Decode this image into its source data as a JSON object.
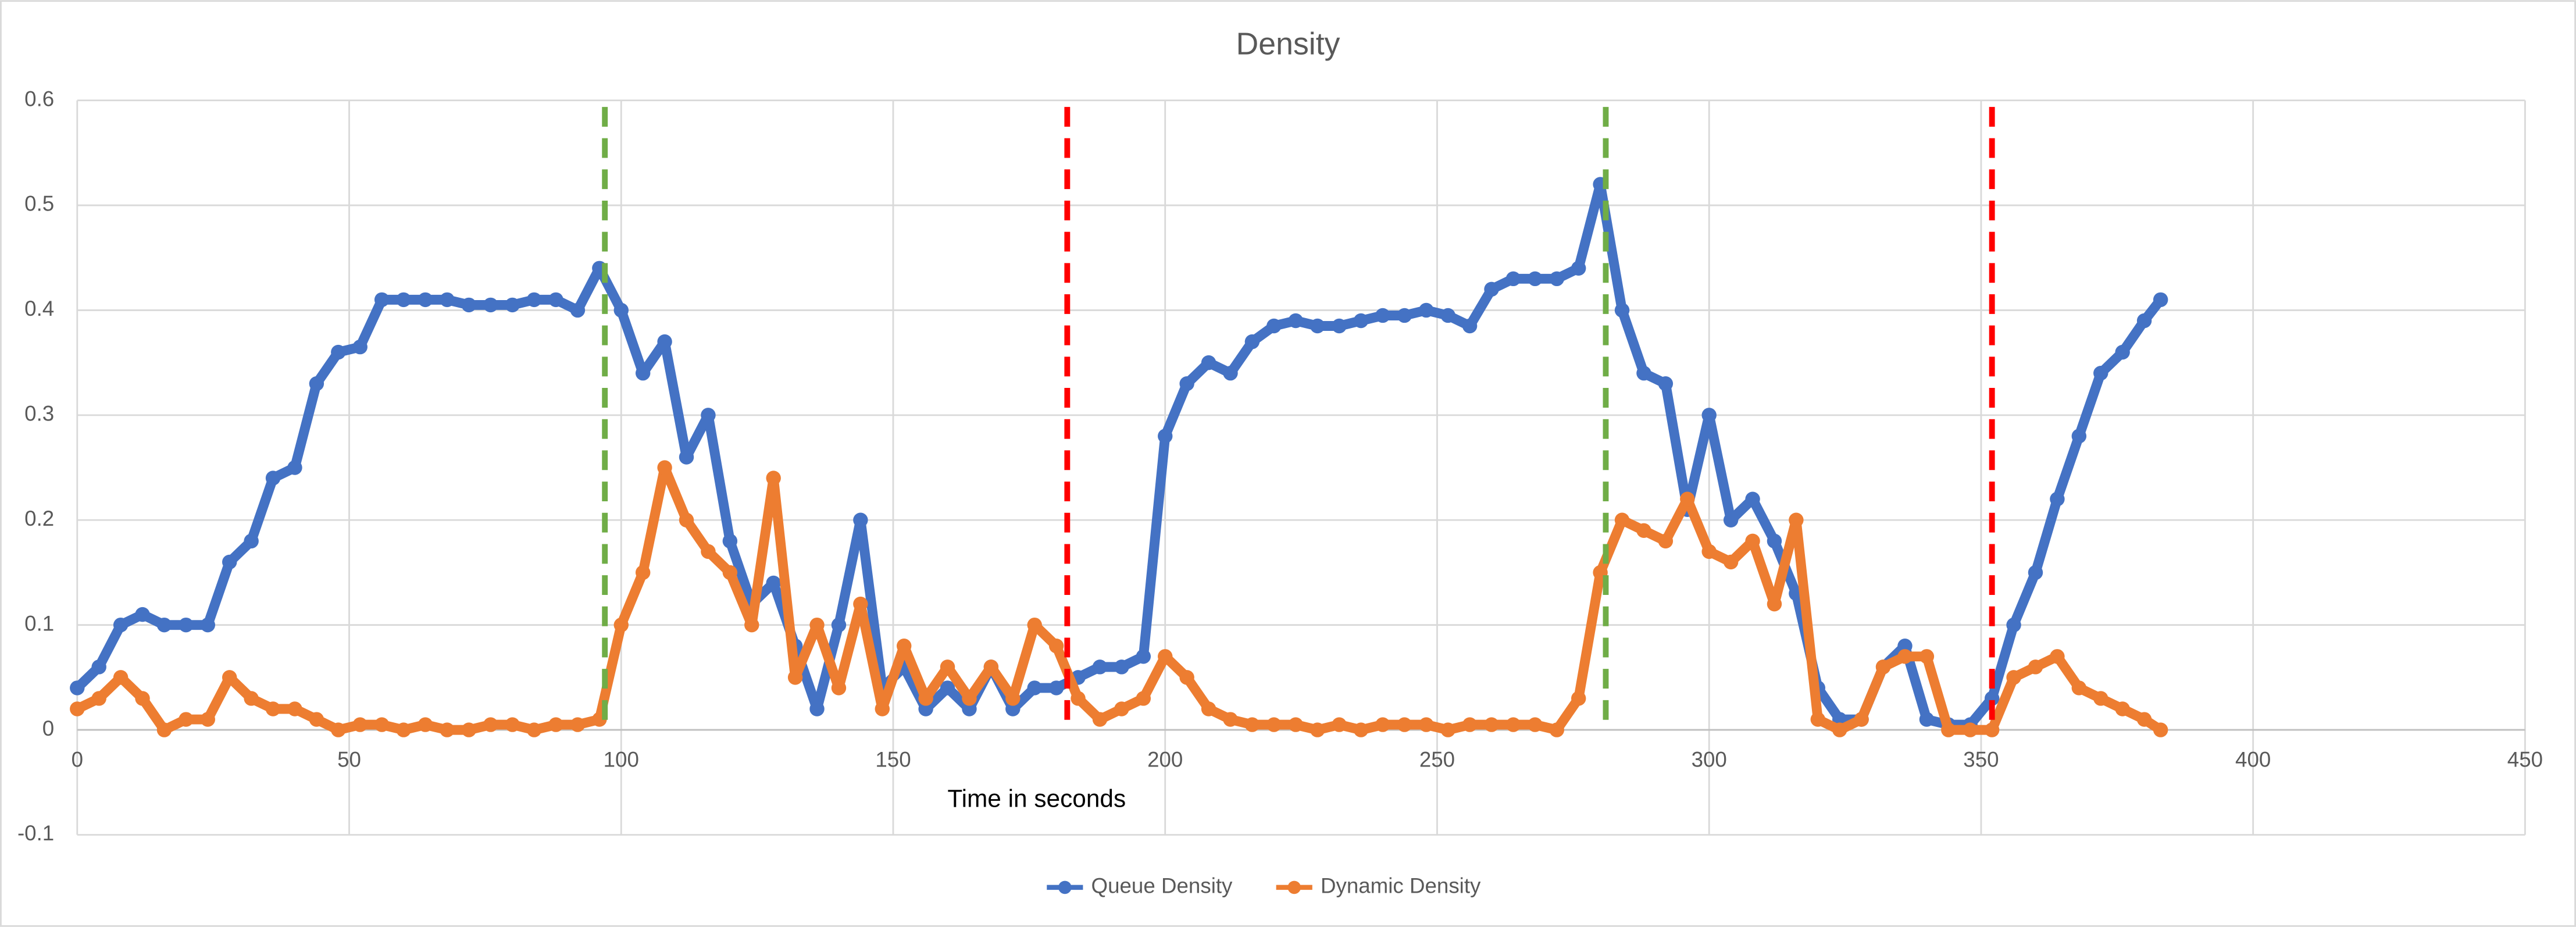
{
  "chart_data": {
    "type": "line",
    "title": "Density",
    "xlabel": "Time in seconds",
    "x": [
      0,
      4,
      8,
      12,
      16,
      20,
      24,
      28,
      32,
      36,
      40,
      44,
      48,
      52,
      56,
      60,
      64,
      68,
      72,
      76,
      80,
      84,
      88,
      92,
      96,
      100,
      104,
      108,
      112,
      116,
      120,
      124,
      128,
      132,
      136,
      140,
      144,
      148,
      152,
      156,
      160,
      164,
      168,
      172,
      176,
      180,
      184,
      188,
      192,
      196,
      200,
      204,
      208,
      212,
      216,
      220,
      224,
      228,
      232,
      236,
      240,
      244,
      248,
      252,
      256,
      260,
      264,
      268,
      272,
      276,
      280,
      284,
      288,
      292,
      296,
      300,
      304,
      308,
      312,
      316,
      320,
      324,
      328,
      332,
      336,
      340,
      344,
      348,
      352,
      356,
      360,
      364,
      368,
      372,
      376,
      380,
      383
    ],
    "series": [
      {
        "name": "Queue Density",
        "color": "#4472c4",
        "values": [
          0.04,
          0.06,
          0.1,
          0.11,
          0.1,
          0.1,
          0.1,
          0.16,
          0.18,
          0.24,
          0.25,
          0.33,
          0.36,
          0.365,
          0.41,
          0.41,
          0.41,
          0.41,
          0.405,
          0.405,
          0.405,
          0.41,
          0.41,
          0.4,
          0.44,
          0.4,
          0.34,
          0.37,
          0.26,
          0.3,
          0.18,
          0.12,
          0.14,
          0.08,
          0.02,
          0.1,
          0.2,
          0.04,
          0.06,
          0.02,
          0.04,
          0.02,
          0.06,
          0.02,
          0.04,
          0.04,
          0.05,
          0.06,
          0.06,
          0.07,
          0.28,
          0.33,
          0.35,
          0.34,
          0.37,
          0.385,
          0.39,
          0.385,
          0.385,
          0.39,
          0.395,
          0.395,
          0.4,
          0.395,
          0.385,
          0.42,
          0.43,
          0.43,
          0.43,
          0.44,
          0.52,
          0.4,
          0.34,
          0.33,
          0.21,
          0.3,
          0.2,
          0.22,
          0.18,
          0.13,
          0.04,
          0.01,
          0.01,
          0.06,
          0.08,
          0.01,
          0.005,
          0.005,
          0.03,
          0.1,
          0.15,
          0.22,
          0.28,
          0.34,
          0.36,
          0.39,
          0.41
        ]
      },
      {
        "name": "Dynamic Density",
        "color": "#ed7d31",
        "values": [
          0.02,
          0.03,
          0.05,
          0.03,
          0.0,
          0.01,
          0.01,
          0.05,
          0.03,
          0.02,
          0.02,
          0.01,
          0.0,
          0.005,
          0.005,
          0.0,
          0.005,
          0.0,
          0.0,
          0.005,
          0.005,
          0.0,
          0.005,
          0.005,
          0.01,
          0.1,
          0.15,
          0.25,
          0.2,
          0.17,
          0.15,
          0.1,
          0.24,
          0.05,
          0.1,
          0.04,
          0.12,
          0.02,
          0.08,
          0.03,
          0.06,
          0.03,
          0.06,
          0.03,
          0.1,
          0.08,
          0.03,
          0.01,
          0.02,
          0.03,
          0.07,
          0.05,
          0.02,
          0.01,
          0.005,
          0.005,
          0.005,
          0.0,
          0.005,
          0.0,
          0.005,
          0.005,
          0.005,
          0.0,
          0.005,
          0.005,
          0.005,
          0.005,
          0.0,
          0.03,
          0.15,
          0.2,
          0.19,
          0.18,
          0.22,
          0.17,
          0.16,
          0.18,
          0.12,
          0.2,
          0.01,
          0.0,
          0.01,
          0.06,
          0.07,
          0.07,
          0.0,
          0.0,
          0.0,
          0.05,
          0.06,
          0.07,
          0.04,
          0.03,
          0.02,
          0.01,
          0.0
        ]
      }
    ],
    "vlines": [
      {
        "x": 97,
        "color": "#70ad47"
      },
      {
        "x": 182,
        "color": "#ff0000"
      },
      {
        "x": 281,
        "color": "#70ad47"
      },
      {
        "x": 352,
        "color": "#ff0000"
      }
    ],
    "xlim": [
      0,
      450
    ],
    "xticks": [
      0,
      50,
      100,
      150,
      200,
      250,
      300,
      350,
      400,
      450
    ],
    "ylim": [
      -0.1,
      0.6
    ],
    "yticks": [
      -0.1,
      0,
      0.1,
      0.2,
      0.3,
      0.4,
      0.5,
      0.6
    ],
    "grid": true,
    "legend": "bottom"
  }
}
